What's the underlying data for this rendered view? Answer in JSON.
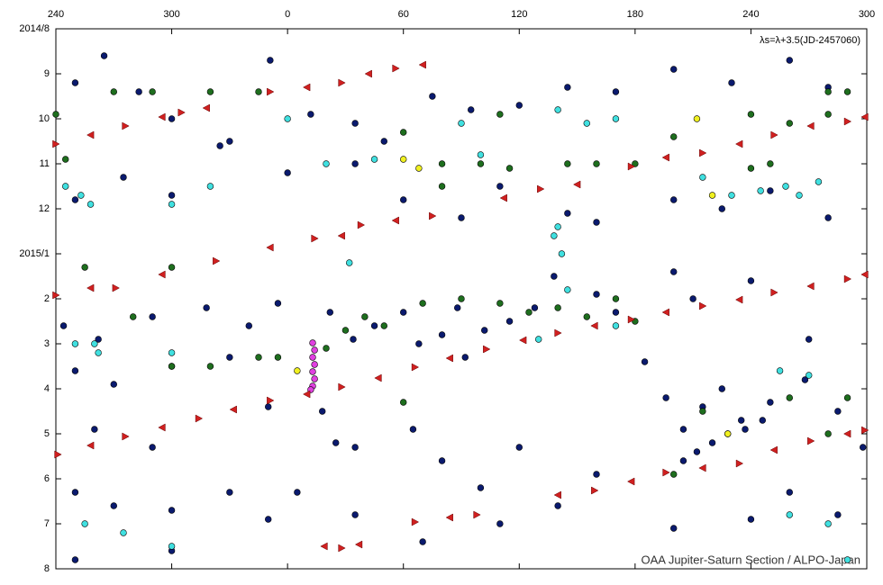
{
  "chart_data": {
    "type": "scatter",
    "annotations": [
      "λs=λ+3.5(JD-2457060)",
      "OAA Jupiter-Saturn Section / ALPO-Japan"
    ],
    "xlim": [
      240,
      660
    ],
    "xticks": [
      240,
      300,
      {
        "value": 360,
        "label": "0"
      },
      {
        "value": 420,
        "label": "60"
      },
      {
        "value": 480,
        "label": "120"
      },
      {
        "value": 540,
        "label": "180"
      },
      {
        "value": 600,
        "label": "240"
      },
      {
        "value": 660,
        "label": "300"
      }
    ],
    "ylim": [
      12,
      0
    ],
    "yticks": [
      {
        "value": 0,
        "label": "2014/8"
      },
      {
        "value": 1,
        "label": "9"
      },
      {
        "value": 2,
        "label": "10"
      },
      {
        "value": 3,
        "label": "11"
      },
      {
        "value": 4,
        "label": "12"
      },
      {
        "value": 5,
        "label": "2015/1"
      },
      {
        "value": 6,
        "label": "2"
      },
      {
        "value": 7,
        "label": "3"
      },
      {
        "value": 8,
        "label": "4"
      },
      {
        "value": 9,
        "label": "5"
      },
      {
        "value": 10,
        "label": "6"
      },
      {
        "value": 11,
        "label": "7"
      },
      {
        "value": 12,
        "label": "8"
      }
    ],
    "series": [
      {
        "color": "#0a1a6e",
        "marker": "circle",
        "x": [
          250,
          265,
          283,
          300,
          330,
          351,
          372,
          395,
          410,
          435,
          455,
          480,
          505,
          530,
          560,
          590,
          620,
          640,
          250,
          275,
          300,
          325,
          360,
          395,
          420,
          450,
          470,
          505,
          520,
          560,
          585,
          610,
          640,
          244,
          262,
          290,
          318,
          340,
          355,
          382,
          394,
          405,
          420,
          428,
          440,
          448,
          452,
          462,
          475,
          488,
          498,
          520,
          530,
          560,
          570,
          600,
          630,
          250,
          270,
          300,
          330,
          350,
          378,
          385,
          395,
          425,
          440,
          460,
          480,
          520,
          545,
          556,
          565,
          575,
          585,
          595,
          610,
          628,
          645,
          658,
          260,
          290,
          250,
          270,
          300,
          330,
          365,
          395,
          430,
          470,
          500,
          560,
          600,
          620,
          645,
          250,
          300,
          350,
          565,
          572,
          580,
          588,
          597,
          606
        ],
        "values": [
          1.2,
          0.6,
          1.4,
          2.0,
          2.5,
          0.7,
          1.9,
          2.1,
          2.5,
          1.5,
          1.8,
          1.7,
          1.3,
          1.4,
          0.9,
          1.2,
          0.7,
          1.3,
          3.8,
          3.3,
          3.7,
          2.6,
          3.2,
          3.0,
          3.8,
          4.2,
          3.5,
          4.1,
          4.3,
          3.8,
          4.0,
          3.6,
          4.2,
          6.6,
          6.9,
          6.4,
          6.2,
          6.6,
          6.1,
          6.3,
          6.9,
          6.6,
          6.3,
          7.0,
          6.8,
          6.2,
          7.3,
          6.7,
          6.5,
          6.2,
          5.5,
          5.9,
          6.3,
          5.4,
          6.0,
          5.6,
          6.9,
          7.6,
          7.9,
          7.5,
          7.3,
          8.4,
          8.5,
          9.2,
          9.3,
          8.9,
          9.6,
          10.2,
          9.3,
          9.9,
          7.4,
          8.2,
          8.9,
          8.4,
          8.0,
          8.7,
          8.3,
          7.8,
          8.5,
          9.3,
          8.9,
          9.3,
          10.3,
          10.6,
          10.7,
          10.3,
          10.3,
          10.8,
          11.4,
          11.0,
          10.6,
          11.1,
          10.9,
          10.3,
          10.8,
          11.8,
          11.6,
          10.9,
          9.6,
          9.4,
          9.2,
          9.0,
          8.9,
          8.7
        ]
      },
      {
        "color": "#1e6e1e",
        "marker": "circle",
        "x": [
          240,
          270,
          290,
          320,
          345,
          470,
          560,
          600,
          640,
          420,
          440,
          460,
          440,
          475,
          505,
          520,
          540,
          600,
          610,
          245,
          620,
          640,
          650,
          255,
          300,
          280,
          400,
          410,
          430,
          450,
          470,
          485,
          500,
          515,
          530,
          540,
          345,
          300,
          320,
          355,
          380,
          390,
          420,
          560,
          575,
          620,
          650,
          640
        ],
        "values": [
          1.9,
          1.4,
          1.4,
          1.4,
          1.4,
          1.9,
          2.4,
          1.9,
          1.4,
          2.3,
          3.0,
          3.0,
          3.5,
          3.1,
          3.0,
          3.0,
          3.0,
          3.1,
          3.0,
          2.9,
          2.1,
          1.9,
          1.4,
          5.3,
          5.3,
          6.4,
          6.4,
          6.6,
          6.1,
          6.0,
          6.1,
          6.3,
          6.2,
          6.4,
          6.0,
          6.5,
          7.3,
          7.5,
          7.5,
          7.3,
          7.1,
          6.7,
          8.3,
          9.9,
          8.5,
          8.2,
          8.2,
          9.0
        ]
      },
      {
        "color": "#40e0e0",
        "marker": "circle",
        "x": [
          245,
          253,
          258,
          300,
          320,
          450,
          460,
          500,
          515,
          530,
          575,
          590,
          605,
          618,
          625,
          635,
          405,
          380,
          360,
          260,
          300,
          392,
          500,
          530,
          505,
          498,
          502,
          615,
          630,
          275,
          300,
          255,
          620,
          640,
          650,
          250,
          262,
          490
        ],
        "values": [
          3.5,
          3.7,
          3.9,
          3.9,
          3.5,
          2.1,
          2.8,
          1.8,
          2.1,
          2.0,
          3.3,
          3.7,
          3.6,
          3.5,
          3.7,
          3.4,
          2.9,
          3.0,
          2.0,
          7.0,
          7.2,
          5.2,
          4.4,
          6.6,
          5.8,
          4.6,
          5.0,
          7.6,
          7.7,
          11.2,
          11.5,
          11.0,
          10.8,
          11.0,
          11.8,
          7.0,
          7.2,
          6.9
        ]
      },
      {
        "color": "#f0f020",
        "marker": "circle",
        "x": [
          420,
          428,
          572,
          580,
          588,
          365
        ],
        "values": [
          2.9,
          3.1,
          2.0,
          3.7,
          9.0,
          7.6
        ]
      },
      {
        "color": "#e040e0",
        "marker": "circle",
        "x": [
          373,
          374,
          373,
          374,
          373,
          374,
          373,
          372
        ],
        "values": [
          6.98,
          7.14,
          7.3,
          7.46,
          7.62,
          7.78,
          7.94,
          8.02
        ]
      },
      {
        "color": "#d02020",
        "marker": "triangle",
        "x": [
          241,
          258,
          276,
          295,
          314,
          332,
          351,
          370,
          388,
          407,
          426,
          444,
          463,
          482,
          500,
          519,
          538,
          556,
          575,
          594,
          612,
          631,
          650,
          659,
          351,
          370,
          388,
          402,
          416,
          430,
          240,
          258,
          276,
          295,
          305,
          318,
          271,
          295,
          323,
          351,
          374,
          388,
          398,
          416,
          435,
          472,
          491,
          510,
          538,
          556,
          575,
          594,
          612,
          631,
          650,
          659,
          556,
          575,
          594,
          612,
          631,
          650,
          659,
          500,
          519,
          538,
          426,
          444,
          458,
          379,
          388,
          397,
          240,
          258
        ],
        "values": [
          9.46,
          9.26,
          9.06,
          8.86,
          8.66,
          8.46,
          8.26,
          8.12,
          7.96,
          7.76,
          7.52,
          7.32,
          7.12,
          6.92,
          6.76,
          6.6,
          6.46,
          6.3,
          6.16,
          6.02,
          5.86,
          5.72,
          5.56,
          5.46,
          1.4,
          1.3,
          1.2,
          1.0,
          0.88,
          0.8,
          2.56,
          2.36,
          2.16,
          1.96,
          1.86,
          1.76,
          5.76,
          5.46,
          5.16,
          4.86,
          4.66,
          4.6,
          4.36,
          4.26,
          4.16,
          3.76,
          3.56,
          3.46,
          3.06,
          2.86,
          2.76,
          2.56,
          2.36,
          2.16,
          2.06,
          1.96,
          9.86,
          9.76,
          9.66,
          9.36,
          9.16,
          9.0,
          8.92,
          10.36,
          10.26,
          10.06,
          10.96,
          10.86,
          10.8,
          11.5,
          11.54,
          11.46,
          5.92,
          5.76
        ]
      }
    ]
  }
}
